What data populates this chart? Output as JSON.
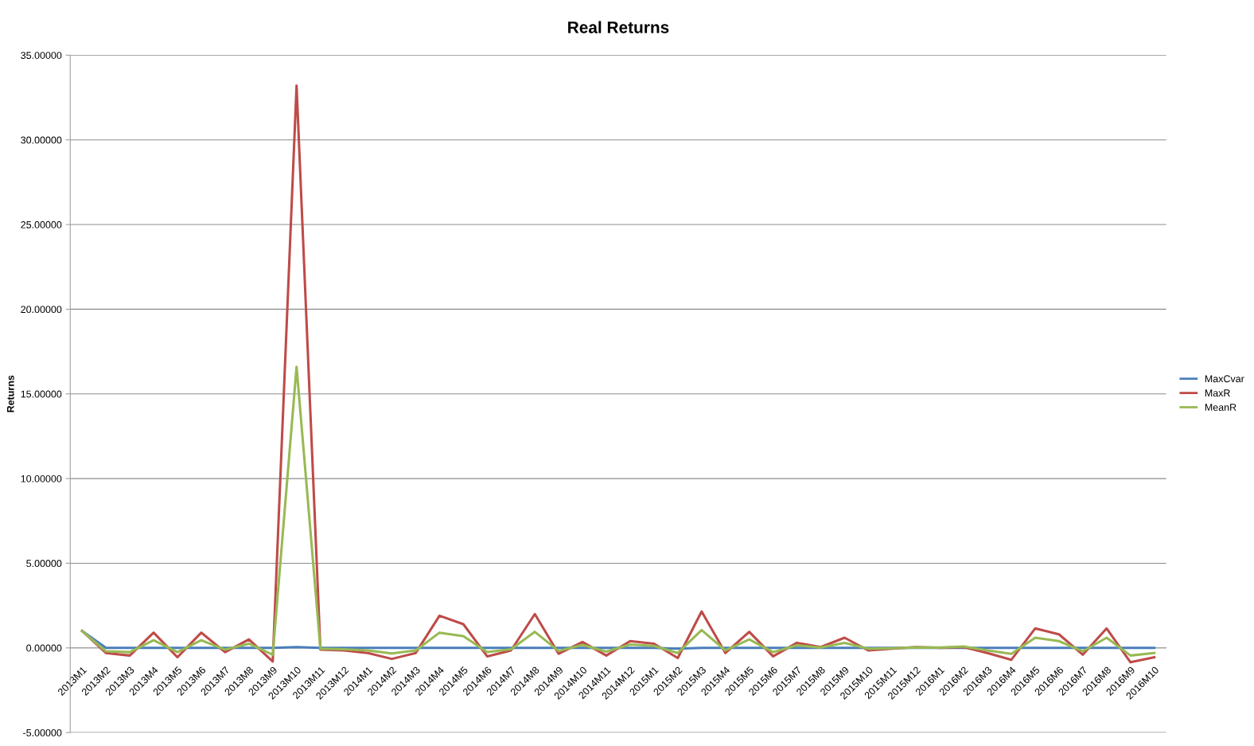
{
  "chart_data": {
    "type": "line",
    "title": "Real Returns",
    "ylabel": "Returns",
    "categories": [
      "2013M1",
      "2013M2",
      "2013M3",
      "2013M4",
      "2013M5",
      "2013M6",
      "2013M7",
      "2013M8",
      "2013M9",
      "2013M10",
      "2013M11",
      "2013M12",
      "2014M1",
      "2014M2",
      "2014M3",
      "2014M4",
      "2014M5",
      "2014M6",
      "2014M7",
      "2014M8",
      "2014M9",
      "2014M10",
      "2014M11",
      "2014M12",
      "2015M1",
      "2015M2",
      "2015M3",
      "2015M4",
      "2015M5",
      "2015M6",
      "2015M7",
      "2015M8",
      "2015M9",
      "2015M10",
      "2015M11",
      "2015M12",
      "2016M1",
      "2016M2",
      "2016M3",
      "2016M4",
      "2016M5",
      "2016M6",
      "2016M7",
      "2016M8",
      "2016M9",
      "2016M10"
    ],
    "series": [
      {
        "name": "MaxCvar",
        "color": "#4a7ebb",
        "values": [
          1.0,
          0,
          0,
          0,
          0,
          0,
          0,
          0,
          0,
          0.05,
          0,
          0,
          0,
          0,
          0,
          0,
          0,
          0,
          0,
          0,
          0,
          0,
          0,
          0,
          0,
          -0.05,
          0,
          0,
          0,
          0,
          0,
          0,
          0,
          0,
          0,
          0,
          0,
          0,
          0,
          0,
          0,
          0,
          0,
          0,
          0,
          0
        ]
      },
      {
        "name": "MaxR",
        "color": "#be4b48",
        "values": [
          1.0,
          -0.3,
          -0.45,
          0.9,
          -0.55,
          0.9,
          -0.25,
          0.5,
          -0.8,
          33.2,
          -0.1,
          -0.15,
          -0.3,
          -0.65,
          -0.3,
          1.9,
          1.4,
          -0.5,
          -0.15,
          2.0,
          -0.35,
          0.35,
          -0.45,
          0.4,
          0.25,
          -0.6,
          2.15,
          -0.3,
          0.95,
          -0.5,
          0.3,
          0.05,
          0.6,
          -0.15,
          -0.05,
          0.05,
          0,
          0.05,
          -0.3,
          -0.7,
          1.15,
          0.8,
          -0.4,
          1.15,
          -0.85,
          -0.55
        ]
      },
      {
        "name": "MeanR",
        "color": "#98b954",
        "values": [
          1.0,
          -0.2,
          -0.25,
          0.45,
          -0.25,
          0.45,
          -0.1,
          0.25,
          -0.4,
          16.6,
          -0.05,
          -0.08,
          -0.15,
          -0.33,
          -0.15,
          0.9,
          0.7,
          -0.25,
          -0.08,
          0.95,
          -0.18,
          0.18,
          -0.22,
          0.2,
          0.12,
          -0.3,
          1.05,
          -0.15,
          0.5,
          -0.25,
          0.15,
          0.02,
          0.3,
          -0.05,
          -0.02,
          0.03,
          0.02,
          0.08,
          -0.15,
          -0.35,
          0.6,
          0.4,
          -0.2,
          0.6,
          -0.45,
          -0.3
        ]
      }
    ],
    "ylim": [
      -5,
      35
    ],
    "yticks": [
      {
        "value": -5,
        "label": "-5.00000"
      },
      {
        "value": 0,
        "label": "0.00000"
      },
      {
        "value": 5,
        "label": "5.00000"
      },
      {
        "value": 10,
        "label": "10.00000"
      },
      {
        "value": 15,
        "label": "15.00000"
      },
      {
        "value": 20,
        "label": "20.00000"
      },
      {
        "value": 25,
        "label": "25.00000"
      },
      {
        "value": 30,
        "label": "30.00000"
      },
      {
        "value": 35,
        "label": "35.00000"
      }
    ],
    "grid": "y",
    "legend": "right",
    "marker": "none",
    "line_style": "solid"
  }
}
